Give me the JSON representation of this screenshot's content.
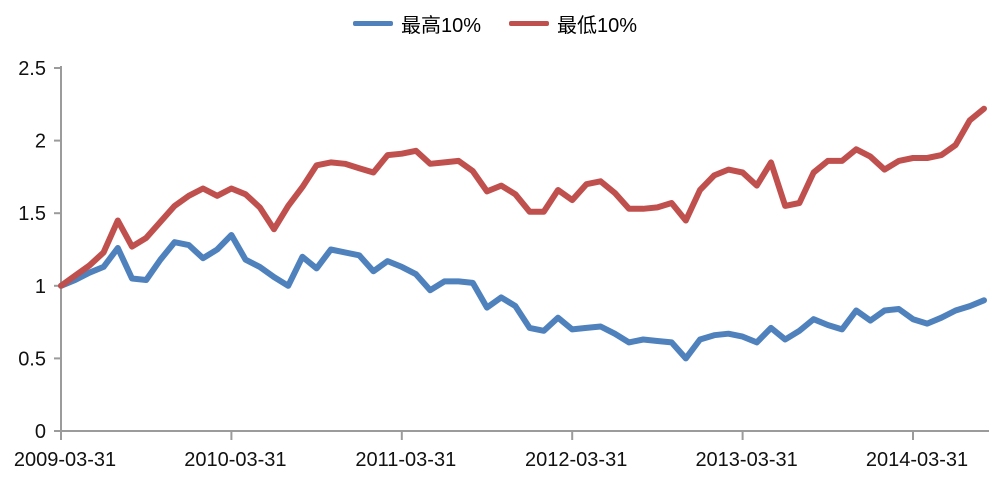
{
  "background": "#ffffff",
  "chart_data": {
    "type": "line",
    "title": "",
    "xlabel": "",
    "ylabel": "",
    "grid": false,
    "legend_position": "top",
    "ylim": [
      0,
      2.5
    ],
    "y_ticks": [
      0,
      0.5,
      1,
      1.5,
      2,
      2.5
    ],
    "y_tick_labels": [
      "0",
      "0.5",
      "1",
      "1.5",
      "2",
      "2.5"
    ],
    "x_tick_labels": [
      "2009-03-31",
      "2010-03-31",
      "2011-03-31",
      "2012-03-31",
      "2013-03-31",
      "2014-03-31"
    ],
    "x_tick_indices": [
      0,
      12,
      24,
      36,
      48,
      60
    ],
    "x_frequency": "monthly",
    "axis_color": "#9b9b9b",
    "series": [
      {
        "name": "最高10%",
        "color": "#4F81BD",
        "values": [
          1.0,
          1.04,
          1.09,
          1.13,
          1.26,
          1.05,
          1.04,
          1.18,
          1.3,
          1.28,
          1.19,
          1.25,
          1.35,
          1.18,
          1.13,
          1.06,
          1.0,
          1.2,
          1.12,
          1.25,
          1.23,
          1.21,
          1.1,
          1.17,
          1.13,
          1.08,
          0.97,
          1.03,
          1.03,
          1.02,
          0.85,
          0.92,
          0.86,
          0.71,
          0.69,
          0.78,
          0.7,
          0.71,
          0.72,
          0.67,
          0.61,
          0.63,
          0.62,
          0.61,
          0.5,
          0.63,
          0.66,
          0.67,
          0.65,
          0.61,
          0.71,
          0.63,
          0.69,
          0.77,
          0.73,
          0.7,
          0.83,
          0.76,
          0.83,
          0.84,
          0.77,
          0.74,
          0.78,
          0.83,
          0.86,
          0.9
        ]
      },
      {
        "name": "最低10%",
        "color": "#C0504D",
        "values": [
          1.0,
          1.07,
          1.14,
          1.23,
          1.45,
          1.27,
          1.33,
          1.44,
          1.55,
          1.62,
          1.67,
          1.62,
          1.67,
          1.63,
          1.54,
          1.39,
          1.55,
          1.68,
          1.83,
          1.85,
          1.84,
          1.81,
          1.78,
          1.9,
          1.91,
          1.93,
          1.84,
          1.85,
          1.86,
          1.79,
          1.65,
          1.69,
          1.63,
          1.51,
          1.51,
          1.66,
          1.59,
          1.7,
          1.72,
          1.64,
          1.53,
          1.53,
          1.54,
          1.57,
          1.45,
          1.66,
          1.76,
          1.8,
          1.78,
          1.69,
          1.85,
          1.55,
          1.57,
          1.78,
          1.86,
          1.86,
          1.94,
          1.89,
          1.8,
          1.86,
          1.88,
          1.88,
          1.9,
          1.97,
          2.14,
          2.22
        ]
      }
    ]
  }
}
